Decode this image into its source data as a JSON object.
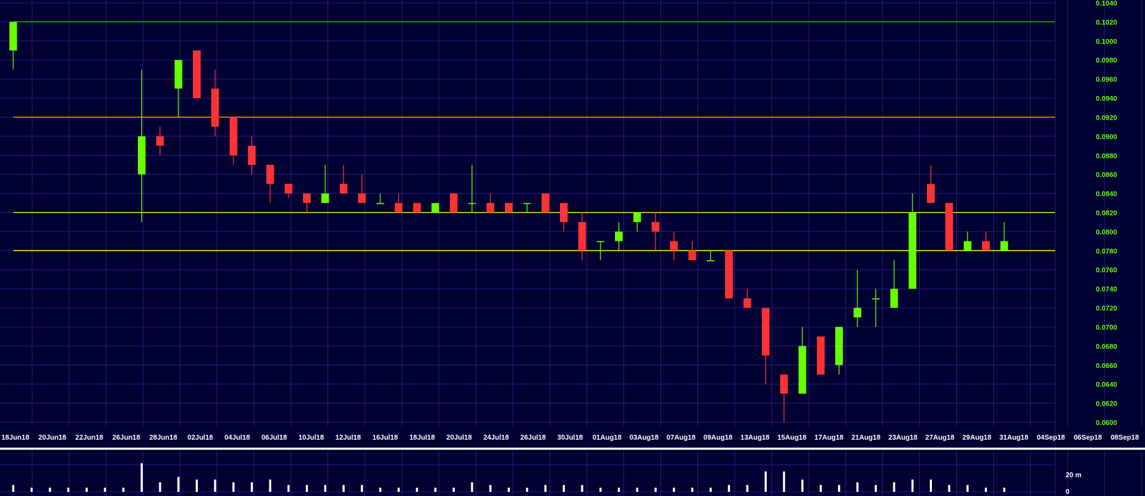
{
  "chart_data": {
    "type": "candlestick",
    "price_axis": {
      "min": 0.06,
      "max": 0.104,
      "ticks": [
        "0.0600",
        "0.0620",
        "0.0640",
        "0.0660",
        "0.0680",
        "0.0700",
        "0.0720",
        "0.0740",
        "0.0760",
        "0.0780",
        "0.0800",
        "0.0820",
        "0.0840",
        "0.0860",
        "0.0880",
        "0.0900",
        "0.0920",
        "0.0940",
        "0.0960",
        "0.0980",
        "0.1000",
        "0.1020",
        "0.1040"
      ]
    },
    "date_axis": {
      "labels": [
        "18Jun18",
        "20Jun18",
        "22Jun18",
        "26Jun18",
        "28Jun18",
        "02Jul18",
        "04Jul18",
        "06Jul18",
        "10Jul18",
        "12Jul18",
        "16Jul18",
        "18Jul18",
        "20Jul18",
        "24Jul18",
        "26Jul18",
        "30Jul18",
        "01Aug18",
        "03Aug18",
        "07Aug18",
        "09Aug18",
        "13Aug18",
        "15Aug18",
        "17Aug18",
        "21Aug18",
        "23Aug18",
        "27Aug18",
        "29Aug18",
        "31Aug18",
        "04Sep18",
        "06Sep18",
        "08Sep18"
      ]
    },
    "volume_axis": {
      "labels": [
        "20 m",
        "0"
      ]
    },
    "horizontal_lines": [
      {
        "value": 0.102,
        "color": "#00cc00"
      },
      {
        "value": 0.092,
        "color": "#ff9900"
      },
      {
        "value": 0.082,
        "color": "#ffff00"
      },
      {
        "value": 0.078,
        "color": "#ffff00"
      }
    ],
    "colors": {
      "up": "#66ff00",
      "down": "#ff3333",
      "volume": "#ffffff",
      "grid": "#2a1a7a",
      "background": "#000033"
    },
    "candles": [
      {
        "slot": 0,
        "open": 0.099,
        "high": 0.102,
        "low": 0.097,
        "close": 0.102,
        "volume": 2
      },
      {
        "slot": 1,
        "open": 0.0,
        "high": 0.0,
        "low": 0.0,
        "close": 0.0,
        "volume": 1,
        "no_trade": true
      },
      {
        "slot": 2,
        "open": 0.0,
        "high": 0.0,
        "low": 0.0,
        "close": 0.0,
        "volume": 1,
        "no_trade": true
      },
      {
        "slot": 3,
        "open": 0.0,
        "high": 0.0,
        "low": 0.0,
        "close": 0.0,
        "volume": 1,
        "no_trade": true
      },
      {
        "slot": 4,
        "open": 0.0,
        "high": 0.0,
        "low": 0.0,
        "close": 0.0,
        "volume": 1,
        "no_trade": true
      },
      {
        "slot": 5,
        "open": 0.0,
        "high": 0.0,
        "low": 0.0,
        "close": 0.0,
        "volume": 1,
        "no_trade": true
      },
      {
        "slot": 6,
        "open": 0.0,
        "high": 0.0,
        "low": 0.0,
        "close": 0.0,
        "volume": 1,
        "no_trade": true
      },
      {
        "slot": 7,
        "open": 0.086,
        "high": 0.097,
        "low": 0.081,
        "close": 0.09,
        "volume": 10
      },
      {
        "slot": 8,
        "open": 0.09,
        "high": 0.091,
        "low": 0.088,
        "close": 0.089,
        "volume": 3
      },
      {
        "slot": 9,
        "open": 0.095,
        "high": 0.098,
        "low": 0.092,
        "close": 0.098,
        "volume": 5
      },
      {
        "slot": 10,
        "open": 0.099,
        "high": 0.099,
        "low": 0.094,
        "close": 0.094,
        "volume": 4
      },
      {
        "slot": 11,
        "open": 0.095,
        "high": 0.097,
        "low": 0.09,
        "close": 0.091,
        "volume": 4
      },
      {
        "slot": 12,
        "open": 0.092,
        "high": 0.092,
        "low": 0.087,
        "close": 0.088,
        "volume": 3
      },
      {
        "slot": 13,
        "open": 0.089,
        "high": 0.09,
        "low": 0.086,
        "close": 0.087,
        "volume": 3
      },
      {
        "slot": 14,
        "open": 0.087,
        "high": 0.087,
        "low": 0.083,
        "close": 0.085,
        "volume": 4
      },
      {
        "slot": 15,
        "open": 0.085,
        "high": 0.085,
        "low": 0.0835,
        "close": 0.084,
        "volume": 2
      },
      {
        "slot": 16,
        "open": 0.084,
        "high": 0.084,
        "low": 0.082,
        "close": 0.083,
        "volume": 2
      },
      {
        "slot": 17,
        "open": 0.083,
        "high": 0.087,
        "low": 0.083,
        "close": 0.084,
        "volume": 2
      },
      {
        "slot": 18,
        "open": 0.085,
        "high": 0.087,
        "low": 0.084,
        "close": 0.084,
        "volume": 2
      },
      {
        "slot": 19,
        "open": 0.084,
        "high": 0.086,
        "low": 0.083,
        "close": 0.083,
        "volume": 2
      },
      {
        "slot": 20,
        "open": 0.083,
        "high": 0.084,
        "low": 0.083,
        "close": 0.083,
        "volume": 1
      },
      {
        "slot": 21,
        "open": 0.083,
        "high": 0.084,
        "low": 0.082,
        "close": 0.082,
        "volume": 1
      },
      {
        "slot": 22,
        "open": 0.083,
        "high": 0.083,
        "low": 0.082,
        "close": 0.082,
        "volume": 1
      },
      {
        "slot": 23,
        "open": 0.082,
        "high": 0.083,
        "low": 0.082,
        "close": 0.083,
        "volume": 1
      },
      {
        "slot": 24,
        "open": 0.084,
        "high": 0.084,
        "low": 0.082,
        "close": 0.082,
        "volume": 1
      },
      {
        "slot": 25,
        "open": 0.083,
        "high": 0.087,
        "low": 0.082,
        "close": 0.083,
        "volume": 3
      },
      {
        "slot": 26,
        "open": 0.083,
        "high": 0.084,
        "low": 0.082,
        "close": 0.082,
        "volume": 2
      },
      {
        "slot": 27,
        "open": 0.083,
        "high": 0.083,
        "low": 0.082,
        "close": 0.082,
        "volume": 1
      },
      {
        "slot": 28,
        "open": 0.083,
        "high": 0.083,
        "low": 0.082,
        "close": 0.083,
        "volume": 1
      },
      {
        "slot": 29,
        "open": 0.084,
        "high": 0.084,
        "low": 0.082,
        "close": 0.082,
        "volume": 2
      },
      {
        "slot": 30,
        "open": 0.083,
        "high": 0.083,
        "low": 0.08,
        "close": 0.081,
        "volume": 2
      },
      {
        "slot": 31,
        "open": 0.081,
        "high": 0.082,
        "low": 0.077,
        "close": 0.078,
        "volume": 2
      },
      {
        "slot": 32,
        "open": 0.079,
        "high": 0.079,
        "low": 0.077,
        "close": 0.079,
        "volume": 1
      },
      {
        "slot": 33,
        "open": 0.079,
        "high": 0.081,
        "low": 0.078,
        "close": 0.08,
        "volume": 1
      },
      {
        "slot": 34,
        "open": 0.081,
        "high": 0.082,
        "low": 0.08,
        "close": 0.082,
        "volume": 1
      },
      {
        "slot": 35,
        "open": 0.081,
        "high": 0.082,
        "low": 0.078,
        "close": 0.08,
        "volume": 1
      },
      {
        "slot": 36,
        "open": 0.079,
        "high": 0.08,
        "low": 0.077,
        "close": 0.078,
        "volume": 1
      },
      {
        "slot": 37,
        "open": 0.078,
        "high": 0.079,
        "low": 0.077,
        "close": 0.077,
        "volume": 1
      },
      {
        "slot": 38,
        "open": 0.077,
        "high": 0.078,
        "low": 0.077,
        "close": 0.077,
        "volume": 1
      },
      {
        "slot": 39,
        "open": 0.078,
        "high": 0.078,
        "low": 0.073,
        "close": 0.073,
        "volume": 2
      },
      {
        "slot": 40,
        "open": 0.073,
        "high": 0.074,
        "low": 0.072,
        "close": 0.072,
        "volume": 2
      },
      {
        "slot": 41,
        "open": 0.072,
        "high": 0.072,
        "low": 0.064,
        "close": 0.067,
        "volume": 7
      },
      {
        "slot": 42,
        "open": 0.065,
        "high": 0.065,
        "low": 0.06,
        "close": 0.063,
        "volume": 7
      },
      {
        "slot": 43,
        "open": 0.063,
        "high": 0.07,
        "low": 0.063,
        "close": 0.068,
        "volume": 4
      },
      {
        "slot": 44,
        "open": 0.069,
        "high": 0.069,
        "low": 0.065,
        "close": 0.065,
        "volume": 2
      },
      {
        "slot": 45,
        "open": 0.066,
        "high": 0.07,
        "low": 0.065,
        "close": 0.07,
        "volume": 2
      },
      {
        "slot": 46,
        "open": 0.071,
        "high": 0.076,
        "low": 0.07,
        "close": 0.072,
        "volume": 3
      },
      {
        "slot": 47,
        "open": 0.073,
        "high": 0.074,
        "low": 0.07,
        "close": 0.073,
        "volume": 2
      },
      {
        "slot": 48,
        "open": 0.072,
        "high": 0.077,
        "low": 0.072,
        "close": 0.074,
        "volume": 3
      },
      {
        "slot": 49,
        "open": 0.074,
        "high": 0.084,
        "low": 0.074,
        "close": 0.082,
        "volume": 4
      },
      {
        "slot": 50,
        "open": 0.085,
        "high": 0.087,
        "low": 0.083,
        "close": 0.083,
        "volume": 4
      },
      {
        "slot": 51,
        "open": 0.083,
        "high": 0.083,
        "low": 0.078,
        "close": 0.078,
        "volume": 2
      },
      {
        "slot": 52,
        "open": 0.078,
        "high": 0.08,
        "low": 0.078,
        "close": 0.079,
        "volume": 2
      },
      {
        "slot": 53,
        "open": 0.079,
        "high": 0.08,
        "low": 0.078,
        "close": 0.078,
        "volume": 1
      },
      {
        "slot": 54,
        "open": 0.078,
        "high": 0.081,
        "low": 0.078,
        "close": 0.079,
        "volume": 1
      }
    ]
  }
}
